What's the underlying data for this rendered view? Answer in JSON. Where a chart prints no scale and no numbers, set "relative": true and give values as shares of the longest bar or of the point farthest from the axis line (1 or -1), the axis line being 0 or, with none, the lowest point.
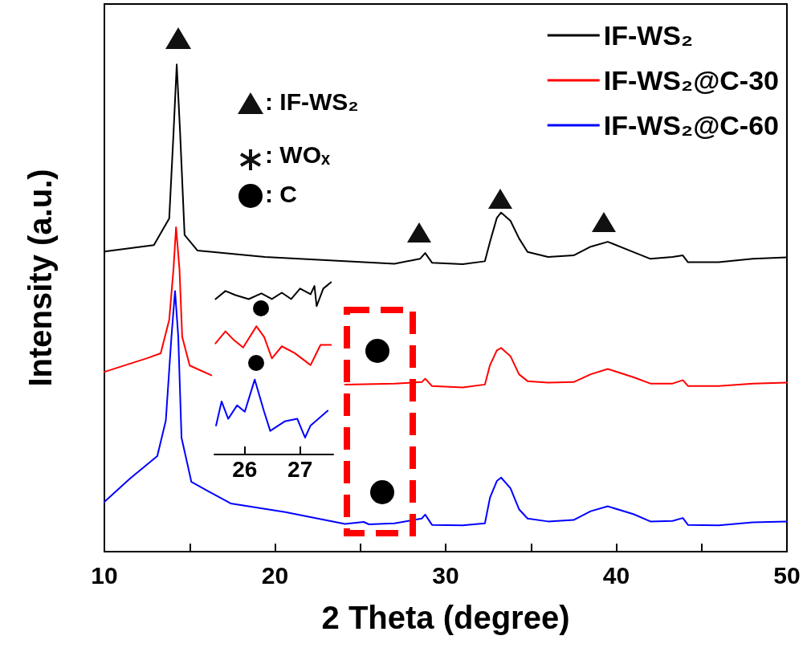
{
  "chart_data": [
    {
      "type": "line",
      "relative": true,
      "xlabel": "2 Theta (degree)",
      "ylabel": "Intensity (a.u.)",
      "xlim": [
        10,
        50
      ],
      "xticks": [
        10,
        {
          "value": 15,
          "label": null
        },
        20,
        {
          "value": 25,
          "label": null
        },
        30,
        {
          "value": 35,
          "label": null
        },
        40,
        {
          "value": 45,
          "label": null
        },
        50
      ],
      "legend": "top right",
      "line_style": "solid",
      "tick_labels": "x",
      "annotations": [
        ": IF-WS₂",
        ": WOₓ",
        ": C"
      ],
      "series": [
        {
          "name": "IF-WS₂",
          "color": "#000000",
          "x": [
            10,
            12.9,
            13.8,
            14.05,
            14.24,
            14.44,
            14.7,
            15.46,
            19.4,
            24.1,
            27,
            28.5,
            28.8,
            29.2,
            31,
            32.3,
            32.6,
            33.0,
            33.25,
            33.8,
            34.3,
            34.8,
            36,
            37.5,
            38.5,
            39.5,
            41,
            42,
            43.3,
            43.9,
            44.2,
            46,
            48,
            50
          ],
          "values": [
            0.616,
            0.629,
            0.684,
            0.858,
            1.0,
            0.858,
            0.65,
            0.618,
            0.605,
            0.596,
            0.591,
            0.601,
            0.613,
            0.593,
            0.59,
            0.596,
            0.636,
            0.685,
            0.696,
            0.679,
            0.643,
            0.615,
            0.605,
            0.608,
            0.626,
            0.636,
            0.615,
            0.601,
            0.605,
            0.608,
            0.594,
            0.594,
            0.601,
            0.604
          ]
        },
        {
          "name": "IF-WS₂@C-30",
          "color": "#ff0000",
          "x": [
            10,
            12.5,
            13.3,
            13.8,
            14.05,
            14.2,
            14.4,
            14.56,
            15.0,
            16.27,
            20,
            24.1,
            27,
            28.6,
            28.8,
            29.2,
            31,
            32.3,
            32.6,
            33.0,
            33.25,
            33.8,
            34.3,
            34.8,
            36,
            37.5,
            38.5,
            39.5,
            41,
            42,
            43.3,
            43.9,
            44.2,
            46,
            48,
            50
          ],
          "values": [
            0.369,
            0.397,
            0.407,
            0.476,
            0.58,
            0.666,
            0.58,
            0.441,
            0.382,
            0.362,
            null,
            0.343,
            0.345,
            0.348,
            0.355,
            0.34,
            0.337,
            0.343,
            0.383,
            0.413,
            0.418,
            0.401,
            0.364,
            0.35,
            0.347,
            0.348,
            0.364,
            0.375,
            0.358,
            0.345,
            0.345,
            0.352,
            0.34,
            0.34,
            0.345,
            0.347
          ]
        },
        {
          "name": "IF-WS₂@C-60",
          "color": "#0000ff",
          "x": [
            10,
            11.5,
            13.1,
            13.6,
            13.93,
            14.14,
            14.33,
            14.52,
            15.1,
            17.4,
            20.6,
            24.1,
            25.2,
            25.5,
            27,
            28.6,
            28.8,
            29.2,
            31,
            32.3,
            32.6,
            33.0,
            33.25,
            33.8,
            34.3,
            34.8,
            36,
            37.5,
            38.5,
            39.5,
            41,
            42,
            43.3,
            43.9,
            44.2,
            46,
            48,
            50
          ],
          "values": [
            0.102,
            0.15,
            0.196,
            0.269,
            0.441,
            0.535,
            0.441,
            0.234,
            0.143,
            0.099,
            0.081,
            0.057,
            0.061,
            0.056,
            0.058,
            0.068,
            0.076,
            0.055,
            0.054,
            0.058,
            0.111,
            0.145,
            0.152,
            0.13,
            0.087,
            0.068,
            0.062,
            0.065,
            0.083,
            0.093,
            0.077,
            0.062,
            0.063,
            0.069,
            0.055,
            0.054,
            0.06,
            0.062
          ]
        }
      ]
    },
    {
      "type": "line",
      "relative": true,
      "xlim": [
        25.45,
        27.6
      ],
      "xticks": [
        26,
        27
      ],
      "line_style": "solid",
      "tick_labels": "x",
      "series": [
        {
          "color": "#000000",
          "x": [
            25.47,
            25.65,
            25.83,
            26.07,
            26.3,
            26.49,
            26.67,
            26.84,
            27.0,
            27.19,
            27.26,
            27.3,
            27.42,
            27.56
          ],
          "values": [
            0.902,
            0.949,
            0.925,
            0.902,
            0.935,
            0.902,
            0.939,
            0.902,
            0.963,
            0.93,
            0.978,
            0.861,
            0.963,
            1.0
          ]
        },
        {
          "color": "#ff0000",
          "x": [
            25.47,
            25.65,
            25.79,
            25.97,
            26.21,
            26.35,
            26.49,
            26.67,
            26.9,
            27.19,
            27.37,
            27.56
          ],
          "values": [
            0.645,
            0.715,
            0.668,
            0.621,
            0.744,
            0.682,
            0.558,
            0.628,
            0.589,
            0.519,
            0.636,
            0.636
          ]
        },
        {
          "color": "#0000ff",
          "x": [
            25.48,
            25.58,
            25.7,
            25.86,
            26.0,
            26.18,
            26.35,
            26.46,
            26.72,
            26.95,
            27.09,
            27.19,
            27.5
          ],
          "values": [
            0.168,
            0.308,
            0.207,
            0.285,
            0.248,
            0.435,
            0.248,
            0.137,
            0.192,
            0.207,
            0.098,
            0.168,
            0.254
          ]
        }
      ]
    }
  ]
}
